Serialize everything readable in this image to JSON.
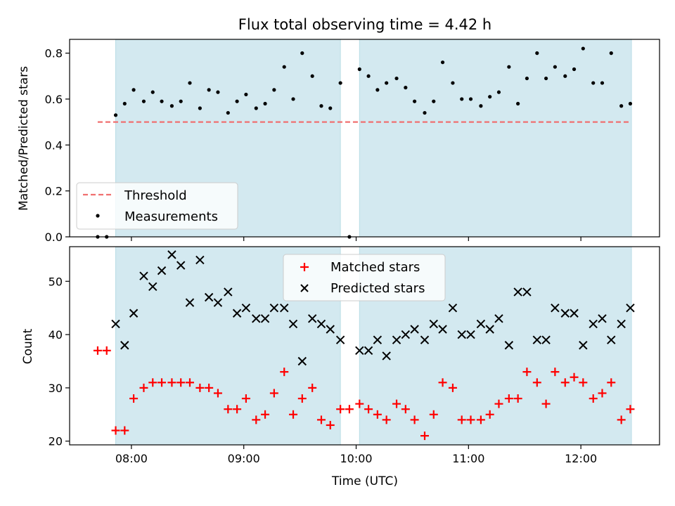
{
  "chart_data": [
    {
      "type": "scatter",
      "title": "Flux total observing time = 4.42 h",
      "ylabel": "Matched/Predicted stars",
      "ylim": [
        0,
        0.86
      ],
      "yticks": [
        0.0,
        0.2,
        0.4,
        0.6,
        0.8
      ],
      "ytick_labels": [
        "0.0",
        "0.2",
        "0.4",
        "0.6",
        "0.8"
      ],
      "x_unit": "hours UTC",
      "xlim": [
        7.45,
        12.7
      ],
      "shaded_intervals": [
        [
          7.86,
          9.86
        ],
        [
          10.03,
          12.45
        ]
      ],
      "shade_color": "#d3e9f0",
      "threshold": {
        "name": "Threshold",
        "value": 0.5,
        "x_range": [
          7.7,
          12.43
        ],
        "color": "#f07070",
        "style": "dashed"
      },
      "series": [
        {
          "name": "Measurements",
          "color": "#000000",
          "marker": "dot",
          "points": [
            [
              7.7,
              0.0
            ],
            [
              7.78,
              0.0
            ],
            [
              7.86,
              0.53
            ],
            [
              7.94,
              0.58
            ],
            [
              8.02,
              0.64
            ],
            [
              8.11,
              0.59
            ],
            [
              8.19,
              0.63
            ],
            [
              8.27,
              0.59
            ],
            [
              8.36,
              0.57
            ],
            [
              8.44,
              0.59
            ],
            [
              8.52,
              0.67
            ],
            [
              8.61,
              0.56
            ],
            [
              8.69,
              0.64
            ],
            [
              8.77,
              0.63
            ],
            [
              8.86,
              0.54
            ],
            [
              8.94,
              0.59
            ],
            [
              9.02,
              0.62
            ],
            [
              9.11,
              0.56
            ],
            [
              9.19,
              0.58
            ],
            [
              9.27,
              0.64
            ],
            [
              9.36,
              0.74
            ],
            [
              9.44,
              0.6
            ],
            [
              9.52,
              0.8
            ],
            [
              9.61,
              0.7
            ],
            [
              9.69,
              0.57
            ],
            [
              9.77,
              0.56
            ],
            [
              9.86,
              0.67
            ],
            [
              9.94,
              0.0
            ],
            [
              10.03,
              0.73
            ],
            [
              10.11,
              0.7
            ],
            [
              10.19,
              0.64
            ],
            [
              10.27,
              0.67
            ],
            [
              10.36,
              0.69
            ],
            [
              10.44,
              0.65
            ],
            [
              10.52,
              0.59
            ],
            [
              10.61,
              0.54
            ],
            [
              10.69,
              0.59
            ],
            [
              10.77,
              0.76
            ],
            [
              10.86,
              0.67
            ],
            [
              10.94,
              0.6
            ],
            [
              11.02,
              0.6
            ],
            [
              11.11,
              0.57
            ],
            [
              11.19,
              0.61
            ],
            [
              11.27,
              0.63
            ],
            [
              11.36,
              0.74
            ],
            [
              11.44,
              0.58
            ],
            [
              11.52,
              0.69
            ],
            [
              11.61,
              0.8
            ],
            [
              11.69,
              0.69
            ],
            [
              11.77,
              0.74
            ],
            [
              11.86,
              0.7
            ],
            [
              11.94,
              0.73
            ],
            [
              12.02,
              0.82
            ],
            [
              12.11,
              0.67
            ],
            [
              12.19,
              0.67
            ],
            [
              12.27,
              0.8
            ],
            [
              12.36,
              0.57
            ],
            [
              12.44,
              0.58
            ]
          ]
        }
      ],
      "legend": {
        "placement": "lower left",
        "entries": [
          "Threshold",
          "Measurements"
        ]
      },
      "grid": false
    },
    {
      "type": "scatter",
      "xlabel": "Time (UTC)",
      "ylabel": "Count",
      "ylim": [
        19.3,
        56.5
      ],
      "yticks": [
        20,
        30,
        40,
        50
      ],
      "ytick_labels": [
        "20",
        "30",
        "40",
        "50"
      ],
      "xticks": [
        8,
        9,
        10,
        11,
        12
      ],
      "xtick_labels": [
        "08:00",
        "09:00",
        "10:00",
        "11:00",
        "12:00"
      ],
      "x_unit": "hours UTC",
      "xlim": [
        7.45,
        12.7
      ],
      "shaded_intervals": [
        [
          7.86,
          9.86
        ],
        [
          10.03,
          12.45
        ]
      ],
      "series": [
        {
          "name": "Matched stars",
          "color": "#ff0000",
          "marker": "plus",
          "points": [
            [
              7.7,
              37
            ],
            [
              7.78,
              37
            ],
            [
              7.86,
              22
            ],
            [
              7.94,
              22
            ],
            [
              8.02,
              28
            ],
            [
              8.11,
              30
            ],
            [
              8.19,
              31
            ],
            [
              8.27,
              31
            ],
            [
              8.36,
              31
            ],
            [
              8.44,
              31
            ],
            [
              8.52,
              31
            ],
            [
              8.61,
              30
            ],
            [
              8.69,
              30
            ],
            [
              8.77,
              29
            ],
            [
              8.86,
              26
            ],
            [
              8.94,
              26
            ],
            [
              9.02,
              28
            ],
            [
              9.11,
              24
            ],
            [
              9.19,
              25
            ],
            [
              9.27,
              29
            ],
            [
              9.36,
              33
            ],
            [
              9.44,
              25
            ],
            [
              9.52,
              28
            ],
            [
              9.61,
              30
            ],
            [
              9.69,
              24
            ],
            [
              9.77,
              23
            ],
            [
              9.86,
              26
            ],
            [
              9.94,
              26
            ],
            [
              10.03,
              27
            ],
            [
              10.11,
              26
            ],
            [
              10.19,
              25
            ],
            [
              10.27,
              24
            ],
            [
              10.36,
              27
            ],
            [
              10.44,
              26
            ],
            [
              10.52,
              24
            ],
            [
              10.61,
              21
            ],
            [
              10.69,
              25
            ],
            [
              10.77,
              31
            ],
            [
              10.86,
              30
            ],
            [
              10.94,
              24
            ],
            [
              11.02,
              24
            ],
            [
              11.11,
              24
            ],
            [
              11.19,
              25
            ],
            [
              11.27,
              27
            ],
            [
              11.36,
              28
            ],
            [
              11.44,
              28
            ],
            [
              11.52,
              33
            ],
            [
              11.61,
              31
            ],
            [
              11.69,
              27
            ],
            [
              11.77,
              33
            ],
            [
              11.86,
              31
            ],
            [
              11.94,
              32
            ],
            [
              12.02,
              31
            ],
            [
              12.11,
              28
            ],
            [
              12.19,
              29
            ],
            [
              12.27,
              31
            ],
            [
              12.36,
              24
            ],
            [
              12.44,
              26
            ]
          ]
        },
        {
          "name": "Predicted stars",
          "color": "#000000",
          "marker": "x",
          "points": [
            [
              7.86,
              42
            ],
            [
              7.94,
              38
            ],
            [
              8.02,
              44
            ],
            [
              8.11,
              51
            ],
            [
              8.19,
              49
            ],
            [
              8.27,
              52
            ],
            [
              8.36,
              55
            ],
            [
              8.44,
              53
            ],
            [
              8.52,
              46
            ],
            [
              8.61,
              54
            ],
            [
              8.69,
              47
            ],
            [
              8.77,
              46
            ],
            [
              8.86,
              48
            ],
            [
              8.94,
              44
            ],
            [
              9.02,
              45
            ],
            [
              9.11,
              43
            ],
            [
              9.19,
              43
            ],
            [
              9.27,
              45
            ],
            [
              9.36,
              45
            ],
            [
              9.44,
              42
            ],
            [
              9.52,
              35
            ],
            [
              9.61,
              43
            ],
            [
              9.69,
              42
            ],
            [
              9.77,
              41
            ],
            [
              9.86,
              39
            ],
            [
              10.03,
              37
            ],
            [
              10.11,
              37
            ],
            [
              10.19,
              39
            ],
            [
              10.27,
              36
            ],
            [
              10.36,
              39
            ],
            [
              10.44,
              40
            ],
            [
              10.52,
              41
            ],
            [
              10.61,
              39
            ],
            [
              10.69,
              42
            ],
            [
              10.77,
              41
            ],
            [
              10.86,
              45
            ],
            [
              10.94,
              40
            ],
            [
              11.02,
              40
            ],
            [
              11.11,
              42
            ],
            [
              11.19,
              41
            ],
            [
              11.27,
              43
            ],
            [
              11.36,
              38
            ],
            [
              11.44,
              48
            ],
            [
              11.52,
              48
            ],
            [
              11.61,
              39
            ],
            [
              11.69,
              39
            ],
            [
              11.77,
              45
            ],
            [
              11.86,
              44
            ],
            [
              11.94,
              44
            ],
            [
              12.02,
              38
            ],
            [
              12.11,
              42
            ],
            [
              12.19,
              43
            ],
            [
              12.27,
              39
            ],
            [
              12.36,
              42
            ],
            [
              12.44,
              45
            ]
          ]
        }
      ],
      "legend": {
        "placement": "upper center",
        "entries": [
          "Matched stars",
          "Predicted stars"
        ]
      },
      "grid": false
    }
  ]
}
